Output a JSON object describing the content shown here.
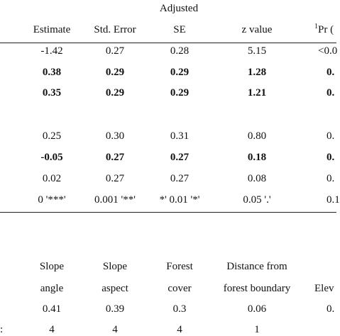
{
  "table1": {
    "adjusted_label": "Adjusted",
    "headers": [
      "Estimate",
      "Std. Error",
      "SE",
      "z value",
      "Pr ("
    ],
    "pr_superscript": "1",
    "rows": [
      {
        "cells": [
          "-1.42",
          "0.27",
          "0.28",
          "5.15",
          "<0.0"
        ],
        "bold": false
      },
      {
        "cells": [
          "0.38",
          "0.29",
          "0.29",
          "1.28",
          "0."
        ],
        "bold": true
      },
      {
        "cells": [
          "0.35",
          "0.29",
          "0.29",
          "1.21",
          "0."
        ],
        "bold": true
      },
      {
        "cells": [
          "0.25",
          "0.30",
          "0.31",
          "0.80",
          "0."
        ],
        "bold": false
      },
      {
        "cells": [
          "-0.05",
          "0.27",
          "0.27",
          "0.18",
          "0."
        ],
        "bold": true
      },
      {
        "cells": [
          "0.02",
          "0.27",
          "0.27",
          "0.08",
          "0."
        ],
        "bold": false
      }
    ],
    "signif_row": [
      "0 '***'",
      "0.001 '**'",
      "*' 0.01 '*'",
      "0.05 '.'",
      "0.1"
    ]
  },
  "table2": {
    "headers_line1": [
      "Slope",
      "Slope",
      "Forest",
      "Distance from",
      "Elev"
    ],
    "headers_line2": [
      "angle",
      "aspect",
      "cover",
      "forest boundary",
      ""
    ],
    "values_row": [
      "0.41",
      "0.39",
      "0.3",
      "0.06",
      "0."
    ],
    "counts_row_label": ":",
    "counts_row": [
      "4",
      "4",
      "4",
      "1",
      ""
    ]
  }
}
